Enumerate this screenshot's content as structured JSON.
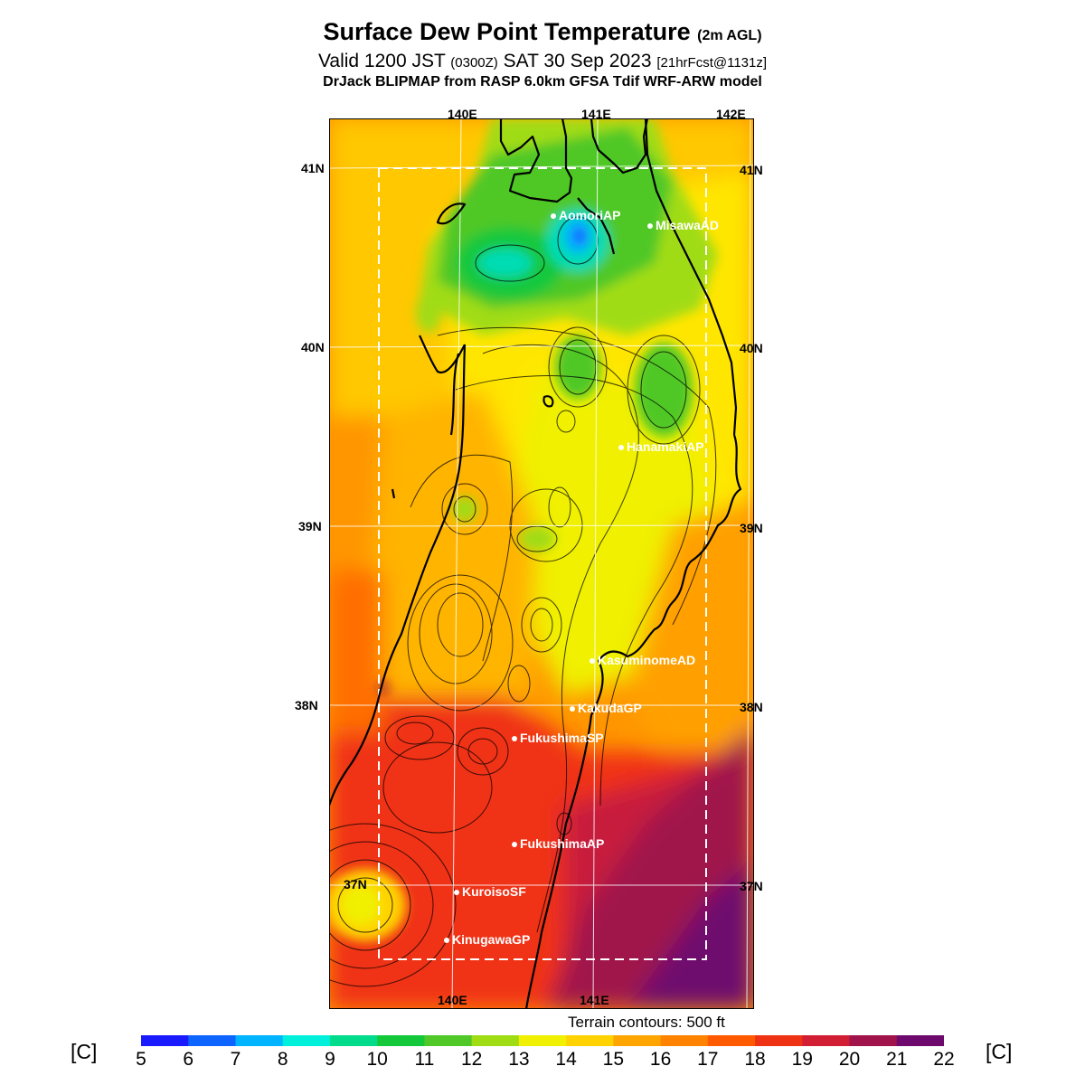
{
  "header": {
    "title": "Surface Dew Point Temperature",
    "title_suffix": "(2m AGL)",
    "valid_prefix": "Valid 1200 JST",
    "valid_zulu": "(0300Z)",
    "valid_date": "SAT 30 Sep 2023",
    "forecast_info": "[21hrFcst@1131z]",
    "model": "DrJack BLIPMAP from RASP 6.0km GFSA Tdif WRF-ARW model"
  },
  "axes": {
    "lon_top": [
      "140E",
      "141E",
      "142E"
    ],
    "lon_bottom": [
      "140E",
      "141E"
    ],
    "lat_left": [
      "41N",
      "40N",
      "39N",
      "38N",
      "37N"
    ],
    "lat_right": [
      "41N",
      "40N",
      "39N",
      "38N",
      "37N"
    ]
  },
  "stations": [
    {
      "name": "AomoriAP"
    },
    {
      "name": "MisawaAD"
    },
    {
      "name": "HanamakiAP"
    },
    {
      "name": "KasuminomeAD"
    },
    {
      "name": "KakudaGP"
    },
    {
      "name": "FukushimaSP"
    },
    {
      "name": "FukushimaAP"
    },
    {
      "name": "KuroisoSF"
    },
    {
      "name": "KinugawaGP"
    }
  ],
  "terrain_note": "Terrain contours: 500 ft",
  "colorbar": {
    "unit_label": "[C]",
    "ticks": [
      "5",
      "6",
      "7",
      "8",
      "9",
      "10",
      "11",
      "12",
      "13",
      "14",
      "15",
      "16",
      "17",
      "18",
      "19",
      "20",
      "21",
      "22"
    ],
    "colors": [
      "#1a1aff",
      "#0e64ff",
      "#00b4ff",
      "#00f0dc",
      "#00dc8c",
      "#14c83c",
      "#50c828",
      "#a0dc14",
      "#f0f000",
      "#ffd200",
      "#ffa500",
      "#ff8200",
      "#ff5a00",
      "#f03214",
      "#d21e32",
      "#a0144b",
      "#6e0a6e"
    ]
  },
  "map_colors": {
    "ocean_base": "#ff8c00",
    "warm_land": "#ffd200",
    "humid_south": "#a0144b",
    "dry_north": "#50c828",
    "driest": "#1a1aff"
  }
}
